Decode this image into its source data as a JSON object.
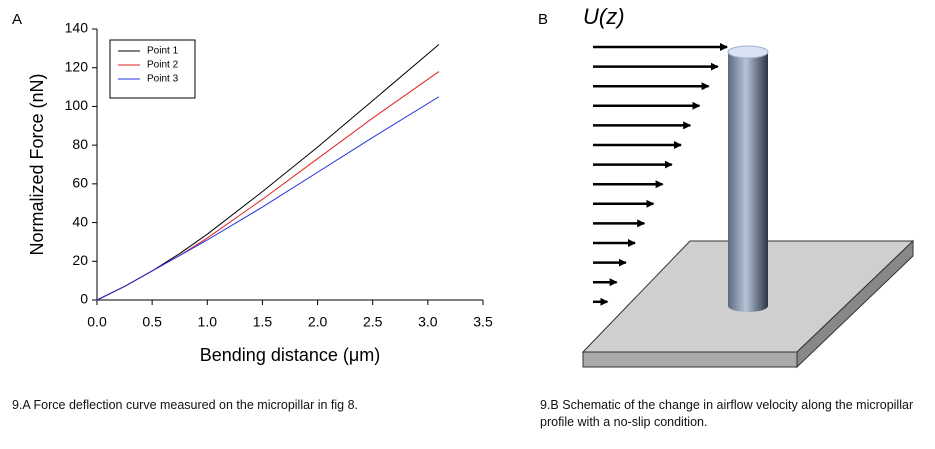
{
  "panel_labels": [
    "A",
    "B"
  ],
  "chart_data": {
    "type": "line",
    "xlabel": "Bending distance (μm)",
    "ylabel": "Normalized Force (nN)",
    "x": [
      0,
      0.25,
      0.5,
      0.75,
      1.0,
      1.5,
      2.0,
      2.5,
      3.1
    ],
    "series": [
      {
        "name": "Point 1",
        "color": "#000000",
        "values": [
          0,
          7,
          15,
          24,
          34,
          56,
          79,
          103,
          132
        ]
      },
      {
        "name": "Point 2",
        "color": "#e02020",
        "values": [
          0,
          7,
          15,
          23,
          32,
          52,
          73,
          94,
          118
        ]
      },
      {
        "name": "Point 3",
        "color": "#2030e0",
        "values": [
          0,
          7,
          15,
          23,
          31,
          48,
          66,
          84,
          105
        ]
      }
    ],
    "xlim": [
      0,
      3.5
    ],
    "xticks": [
      {
        "value": 0,
        "label": "0.0"
      },
      0.5,
      {
        "value": 1,
        "label": "1.0"
      },
      1.5,
      {
        "value": 2,
        "label": "2.0"
      },
      2.5,
      {
        "value": 3,
        "label": "3.0"
      },
      3.5
    ],
    "ylim": [
      0,
      140
    ],
    "yticks": [
      0,
      20,
      40,
      60,
      80,
      100,
      120,
      140
    ],
    "legend": "upper left",
    "grid": false
  },
  "diagram": {
    "velocity_label": "U(z)"
  },
  "captions": [
    "9.A Force deflection curve measured on the micropillar in fig 8.",
    "9.B Schematic of the change in airflow velocity along the micropillar profile with a no-slip condition."
  ]
}
